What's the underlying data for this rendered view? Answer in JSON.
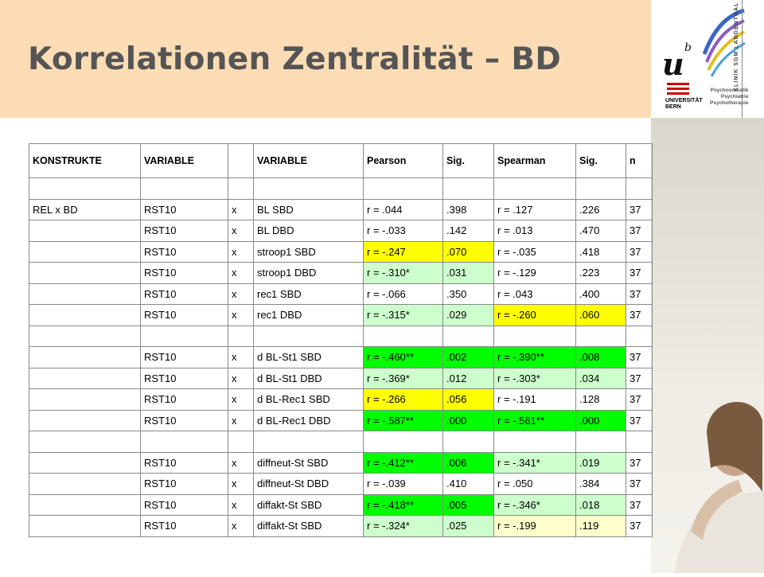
{
  "title": "Korrelationen Zentralität – BD",
  "logo": {
    "mark": "u",
    "superscript": "b",
    "university_line1": "UNIVERSITÄT",
    "university_line2": "BERN",
    "clinic": "KLINIK SGM LANGENTHAL",
    "tagline": [
      "Psychosomatik",
      "Psychiatrie",
      "Psychotherapie"
    ],
    "brand_red": "#cc0000"
  },
  "colors": {
    "header_bg": "#fbdcb4",
    "yellow": "#ffff00",
    "green": "#00ff00",
    "light_green": "#ccffcc",
    "light_yellow": "#ffffcc"
  },
  "table": {
    "headers": [
      "KONSTRUKTE",
      "VARIABLE",
      "",
      "VARIABLE",
      "Pearson",
      "Sig.",
      "Spearman",
      "Sig.",
      "n"
    ],
    "rows": [
      {
        "cells": [
          "",
          "",
          "",
          "",
          "",
          "",
          "",
          "",
          ""
        ],
        "hl": [
          "",
          "",
          "",
          "",
          "",
          "",
          "",
          "",
          ""
        ]
      },
      {
        "cells": [
          "REL x BD",
          "RST10",
          "x",
          "BL SBD",
          "r = .044",
          ".398",
          "r = .127",
          ".226",
          "37"
        ],
        "hl": [
          "",
          "",
          "",
          "",
          "",
          "",
          "",
          "",
          ""
        ]
      },
      {
        "cells": [
          "",
          "RST10",
          "x",
          "BL DBD",
          "r = -.033",
          ".142",
          "r = .013",
          ".470",
          "37"
        ],
        "hl": [
          "",
          "",
          "",
          "",
          "",
          "",
          "",
          "",
          ""
        ]
      },
      {
        "cells": [
          "",
          "RST10",
          "x",
          "stroop1 SBD",
          "r = -.247",
          ".070",
          "r = -.035",
          ".418",
          "37"
        ],
        "hl": [
          "",
          "",
          "",
          "",
          "Y",
          "Y",
          "",
          "",
          ""
        ]
      },
      {
        "cells": [
          "",
          "RST10",
          "x",
          "stroop1 DBD",
          "r = -.310*",
          ".031",
          "r = -.129",
          ".223",
          "37"
        ],
        "hl": [
          "",
          "",
          "",
          "",
          "L",
          "L",
          "",
          "",
          ""
        ]
      },
      {
        "cells": [
          "",
          "RST10",
          "x",
          "rec1 SBD",
          "r = -.066",
          ".350",
          "r = .043",
          ".400",
          "37"
        ],
        "hl": [
          "",
          "",
          "",
          "",
          "",
          "",
          "",
          "",
          ""
        ]
      },
      {
        "cells": [
          "",
          "RST10",
          "x",
          "rec1 DBD",
          "r = -.315*",
          ".029",
          "r = -.260",
          ".060",
          "37"
        ],
        "hl": [
          "",
          "",
          "",
          "",
          "L",
          "L",
          "Y",
          "Y",
          ""
        ]
      },
      {
        "cells": [
          "",
          "",
          "",
          "",
          "",
          "",
          "",
          "",
          ""
        ],
        "hl": [
          "",
          "",
          "",
          "",
          "",
          "",
          "",
          "",
          ""
        ]
      },
      {
        "cells": [
          "",
          "RST10",
          "x",
          "d BL-St1 SBD",
          "r = -.460**",
          ".002",
          "r = -.390**",
          ".008",
          "37"
        ],
        "hl": [
          "",
          "",
          "",
          "",
          "G",
          "G",
          "G",
          "G",
          ""
        ]
      },
      {
        "cells": [
          "",
          "RST10",
          "x",
          "d BL-St1 DBD",
          "r = -.369*",
          ".012",
          "r = -.303*",
          ".034",
          "37"
        ],
        "hl": [
          "",
          "",
          "",
          "",
          "L",
          "L",
          "L",
          "L",
          ""
        ]
      },
      {
        "cells": [
          "",
          "RST10",
          "x",
          "d BL-Rec1 SBD",
          "r = -.266",
          ".056",
          "r = -.191",
          ".128",
          "37"
        ],
        "hl": [
          "",
          "",
          "",
          "",
          "Y",
          "Y",
          "",
          "",
          ""
        ]
      },
      {
        "cells": [
          "",
          "RST10",
          "x",
          "d BL-Rec1 DBD",
          "r = -.587**",
          ".000",
          "r = -.561**",
          ".000",
          "37"
        ],
        "hl": [
          "",
          "",
          "",
          "",
          "G",
          "G",
          "G",
          "G",
          ""
        ]
      },
      {
        "cells": [
          "",
          "",
          "",
          "",
          "",
          "",
          "",
          "",
          ""
        ],
        "hl": [
          "",
          "",
          "",
          "",
          "",
          "",
          "",
          "",
          ""
        ]
      },
      {
        "cells": [
          "",
          "RST10",
          "x",
          "diffneut-St SBD",
          "r = -.412**",
          ".006",
          "r = -.341*",
          ".019",
          "37"
        ],
        "hl": [
          "",
          "",
          "",
          "",
          "G",
          "G",
          "L",
          "L",
          ""
        ]
      },
      {
        "cells": [
          "",
          "RST10",
          "x",
          "diffneut-St DBD",
          "r = -.039",
          ".410",
          "r = .050",
          ".384",
          "37"
        ],
        "hl": [
          "",
          "",
          "",
          "",
          "",
          "",
          "",
          "",
          ""
        ]
      },
      {
        "cells": [
          "",
          "RST10",
          "x",
          "diffakt-St SBD",
          "r = -.418**",
          ".005",
          "r = -.346*",
          ".018",
          "37"
        ],
        "hl": [
          "",
          "",
          "",
          "",
          "G",
          "G",
          "L",
          "L",
          ""
        ]
      },
      {
        "cells": [
          "",
          "RST10",
          "x",
          "diffakt-St SBD",
          "r = -.324*",
          ".025",
          "r = -.199",
          ".119",
          "37"
        ],
        "hl": [
          "",
          "",
          "",
          "",
          "L",
          "L",
          "P",
          "P",
          ""
        ]
      }
    ]
  }
}
